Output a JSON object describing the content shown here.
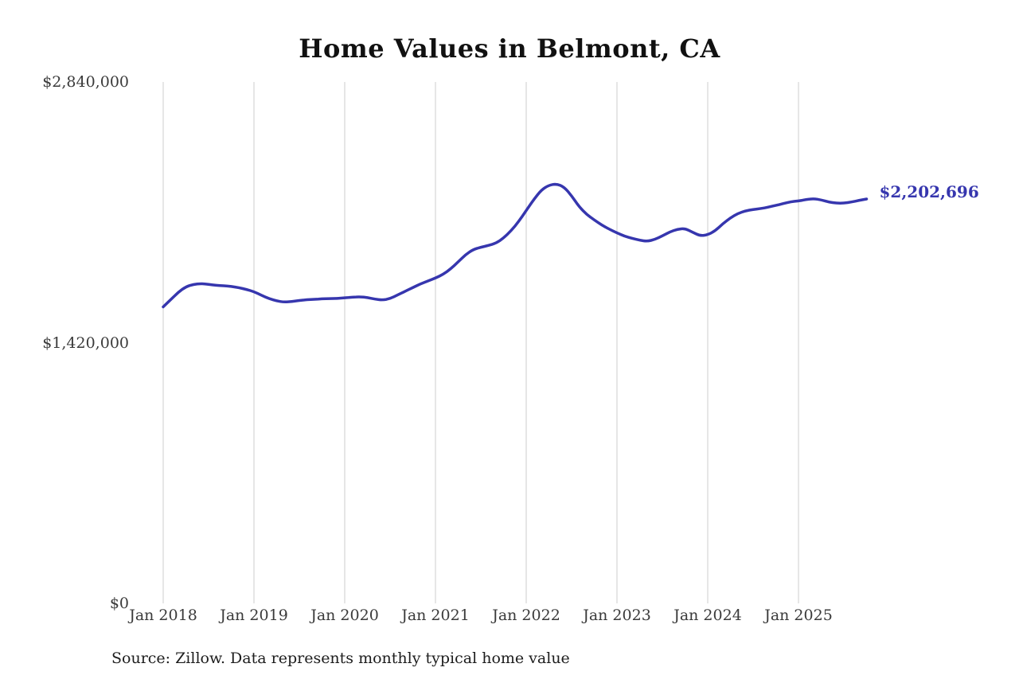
{
  "chart_data": {
    "type": "line",
    "title": "Home Values in Belmont, CA",
    "series_name": "Monthly typical home value",
    "unit": "USD",
    "x_start": "Jan 2018",
    "x_end": "Oct 2025",
    "xticks": [
      "Jan 2018",
      "Jan 2019",
      "Jan 2020",
      "Jan 2021",
      "Jan 2022",
      "Jan 2023",
      "Jan 2024",
      "Jan 2025"
    ],
    "yticks": [
      {
        "value": 0,
        "label": "$0"
      },
      {
        "value": 1420000,
        "label": "$1,420,000"
      },
      {
        "value": 2840000,
        "label": "$2,840,000"
      }
    ],
    "ylim": [
      0,
      2840000
    ],
    "grid": "vertical",
    "legend": "none",
    "line_color": "#3636ae",
    "grid_color": "#cccccc",
    "end_label": "$2,202,696",
    "end_value": 2202696,
    "values": [
      1615000,
      1655000,
      1695000,
      1725000,
      1738000,
      1742000,
      1738000,
      1732000,
      1730000,
      1726000,
      1720000,
      1710000,
      1698000,
      1678000,
      1660000,
      1647000,
      1641000,
      1644000,
      1650000,
      1654000,
      1656000,
      1659000,
      1660000,
      1661000,
      1664000,
      1668000,
      1670000,
      1666000,
      1657000,
      1652000,
      1660000,
      1680000,
      1700000,
      1720000,
      1740000,
      1756000,
      1772000,
      1792000,
      1822000,
      1860000,
      1900000,
      1928000,
      1940000,
      1950000,
      1962000,
      1990000,
      2030000,
      2080000,
      2140000,
      2200000,
      2252000,
      2278000,
      2285000,
      2268000,
      2220000,
      2160000,
      2118000,
      2088000,
      2060000,
      2038000,
      2018000,
      2000000,
      1988000,
      1978000,
      1972000,
      1982000,
      2002000,
      2024000,
      2038000,
      2042000,
      2022000,
      2002000,
      2008000,
      2030000,
      2068000,
      2100000,
      2124000,
      2138000,
      2146000,
      2150000,
      2158000,
      2168000,
      2178000,
      2188000,
      2192000,
      2200000,
      2205000,
      2198000,
      2186000,
      2180000,
      2180000,
      2186000,
      2195000,
      2202696
    ]
  },
  "source": "Source: Zillow. Data represents monthly typical home value"
}
